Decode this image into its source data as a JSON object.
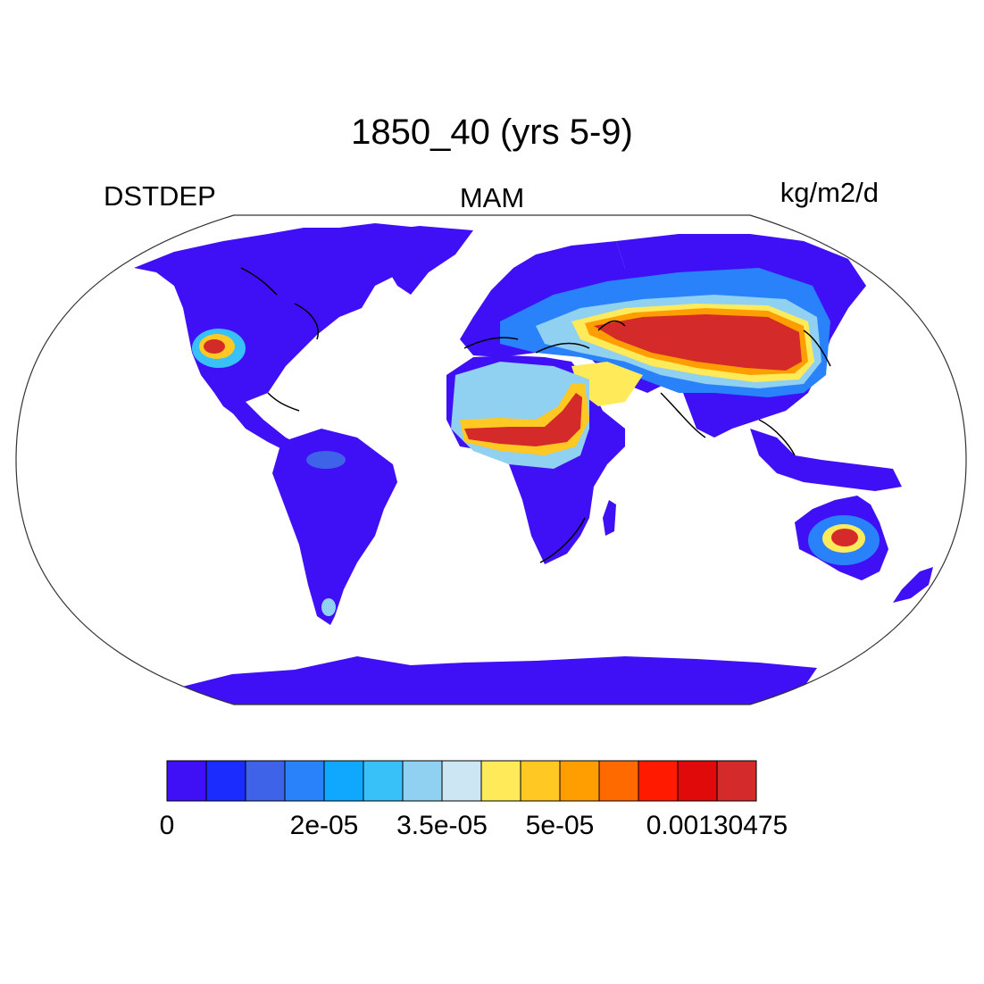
{
  "title": "1850_40 (yrs 5-9)",
  "variable": "DSTDEP",
  "season": "MAM",
  "units": "kg/m2/d",
  "projection": "Robinson",
  "colorbar": {
    "colors": [
      "#3f10f5",
      "#1a2cff",
      "#3f63e8",
      "#2a82fa",
      "#10a8ff",
      "#38c0f8",
      "#90d0f0",
      "#cce6f4",
      "#ffea5a",
      "#ffc822",
      "#ff9e00",
      "#ff6a00",
      "#ff1a00",
      "#e00a0a",
      "#d42a2a"
    ],
    "tick_labels": [
      {
        "label": "0",
        "level": 0
      },
      {
        "label": "2e-05",
        "level": 4
      },
      {
        "label": "3.5e-05",
        "level": 7
      },
      {
        "label": "5e-05",
        "level": 10
      },
      {
        "label": "0.00130475",
        "level": 14
      }
    ]
  },
  "ocean_color": "#ffffff",
  "land_color_base": "#3f10f5",
  "coastline_color": "#000000"
}
